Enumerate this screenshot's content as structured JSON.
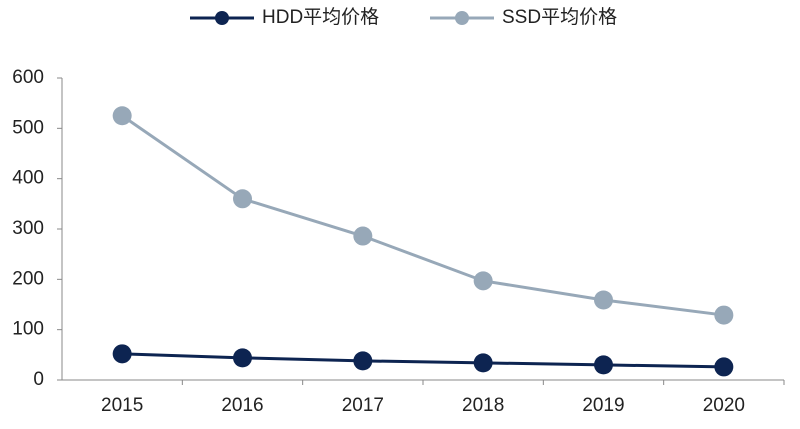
{
  "chart_data": {
    "type": "line",
    "categories": [
      "2015",
      "2016",
      "2017",
      "2018",
      "2019",
      "2020"
    ],
    "series": [
      {
        "name": "HDD平均价格",
        "color": "#0d2451",
        "values": [
          52,
          44,
          38,
          34,
          30,
          26
        ]
      },
      {
        "name": "SSD平均价格",
        "color": "#97a8b8",
        "values": [
          525,
          360,
          286,
          197,
          159,
          129
        ]
      }
    ],
    "ylim": [
      0,
      600
    ],
    "yticks": [
      0,
      100,
      200,
      300,
      400,
      500,
      600
    ],
    "grid": false,
    "legend": "top"
  }
}
